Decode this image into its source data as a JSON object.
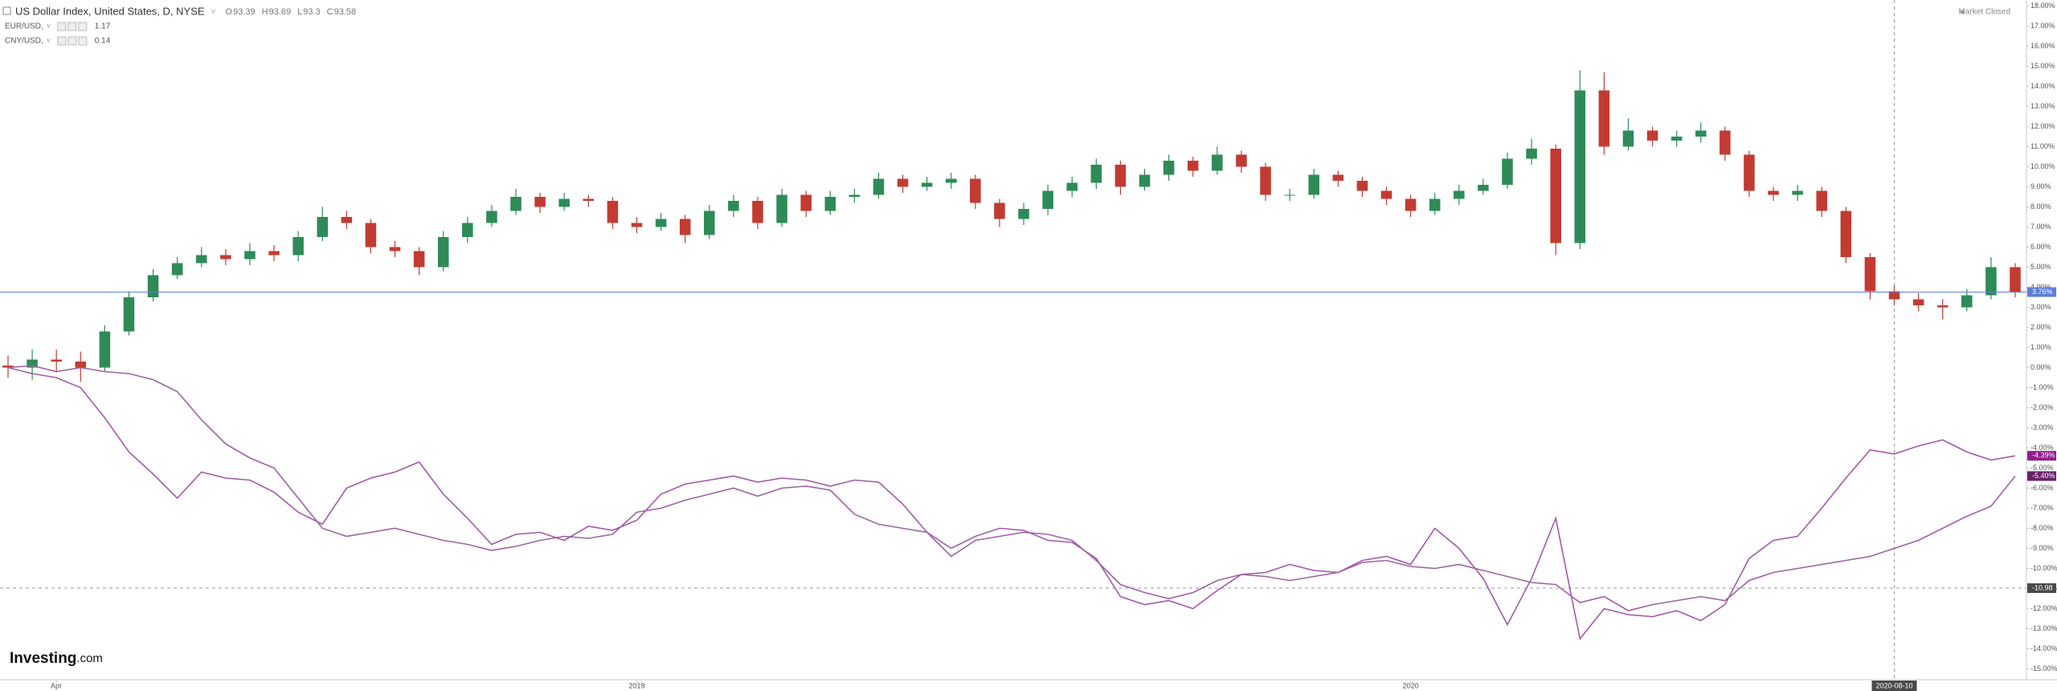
{
  "chart_data": {
    "type": "candlestick",
    "status": "Market Closed",
    "logo": {
      "brand": "Investing",
      "suffix": ".com"
    },
    "categories": [
      null,
      null,
      "Apr",
      null,
      null,
      null,
      null,
      null,
      null,
      null,
      null,
      null,
      null,
      null,
      null,
      null,
      null,
      null,
      null,
      null,
      null,
      null,
      null,
      null,
      null,
      null,
      "2019",
      null,
      null,
      null,
      null,
      null,
      null,
      null,
      null,
      null,
      null,
      null,
      null,
      null,
      null,
      null,
      null,
      null,
      null,
      null,
      null,
      null,
      null,
      null,
      null,
      null,
      null,
      null,
      null,
      null,
      null,
      null,
      "2020",
      null,
      null,
      null,
      null,
      null,
      null,
      null,
      null,
      null,
      null,
      null,
      null,
      null,
      null,
      null,
      null,
      null,
      null,
      null,
      "2020-08-10",
      null,
      null,
      null,
      null,
      null
    ],
    "candles": {
      "name": "US Dollar Index, United States, D, NYSE",
      "readout": [
        {
          "label": "O",
          "value": 93.39
        },
        {
          "label": "H",
          "value": 93.69
        },
        {
          "label": "L",
          "value": 93.3
        },
        {
          "label": "C",
          "value": 93.58
        }
      ],
      "up_color": "#2e8b57",
      "down_color": "#c23b32",
      "last_color": "#5b7fde",
      "open": [
        0.1,
        0,
        0.4,
        0.3,
        0,
        1.8,
        3.5,
        4.6,
        5.2,
        5.6,
        5.4,
        5.8,
        5.6,
        6.5,
        7.5,
        7.2,
        6.0,
        5.8,
        5.0,
        6.5,
        7.2,
        7.8,
        8.5,
        8.0,
        8.4,
        8.3,
        7.2,
        7.0,
        7.4,
        6.6,
        7.8,
        8.3,
        7.2,
        8.6,
        7.8,
        8.5,
        8.6,
        9.4,
        9.0,
        9.2,
        9.4,
        8.2,
        7.4,
        7.9,
        8.8,
        9.2,
        10.1,
        9.0,
        9.6,
        10.3,
        9.8,
        10.6,
        10.0,
        8.6,
        8.6,
        9.6,
        9.3,
        8.8,
        8.4,
        7.8,
        8.4,
        8.8,
        9.1,
        10.4,
        10.9,
        6.2,
        13.8,
        11.0,
        11.8,
        11.3,
        11.5,
        11.8,
        10.6,
        8.8,
        8.6,
        8.8,
        7.8,
        5.5,
        3.8,
        3.4,
        3.1,
        3.0,
        3.6,
        5.0
      ],
      "high": [
        0.6,
        0.9,
        0.9,
        0.8,
        2.1,
        3.8,
        4.9,
        5.5,
        6.0,
        5.9,
        6.2,
        6.1,
        6.8,
        8.0,
        7.8,
        7.4,
        6.3,
        6.0,
        6.8,
        7.5,
        8.1,
        8.9,
        8.7,
        8.7,
        8.6,
        8.5,
        7.5,
        7.7,
        7.6,
        8.1,
        8.6,
        8.5,
        8.9,
        8.8,
        8.8,
        8.9,
        9.7,
        9.6,
        9.5,
        9.7,
        9.6,
        8.4,
        8.2,
        9.1,
        9.5,
        10.4,
        10.3,
        9.9,
        10.6,
        10.5,
        11.0,
        10.8,
        10.2,
        8.9,
        9.9,
        9.8,
        9.5,
        9.0,
        8.6,
        8.7,
        9.1,
        9.4,
        10.7,
        11.4,
        11.1,
        14.8,
        14.7,
        12.4,
        12.0,
        11.8,
        12.2,
        12.0,
        10.8,
        9.0,
        9.1,
        9.0,
        8.0,
        5.7,
        4.1,
        3.7,
        3.4,
        3.9,
        5.5,
        5.2
      ],
      "low": [
        -0.5,
        -0.6,
        -0.2,
        -0.7,
        -0.2,
        1.6,
        3.3,
        4.4,
        5.0,
        5.1,
        5.1,
        5.3,
        5.3,
        6.3,
        6.9,
        5.7,
        5.5,
        4.6,
        4.8,
        6.2,
        7.0,
        7.6,
        7.7,
        7.8,
        8.0,
        6.9,
        6.7,
        6.8,
        6.2,
        6.4,
        7.5,
        6.9,
        7.0,
        7.5,
        7.6,
        8.2,
        8.4,
        8.7,
        8.8,
        8.9,
        7.9,
        7.0,
        7.1,
        7.6,
        8.5,
        8.9,
        8.6,
        8.8,
        9.3,
        9.5,
        9.6,
        9.7,
        8.3,
        8.3,
        8.4,
        9.0,
        8.5,
        8.1,
        7.5,
        7.6,
        8.1,
        8.6,
        8.9,
        10.1,
        5.6,
        5.9,
        10.6,
        10.8,
        11.0,
        11.0,
        11.2,
        10.3,
        8.5,
        8.3,
        8.3,
        7.5,
        5.2,
        3.4,
        3.1,
        2.8,
        2.4,
        2.8,
        3.4,
        3.5
      ],
      "close": [
        0,
        0.4,
        0.3,
        0,
        1.8,
        3.5,
        4.6,
        5.2,
        5.6,
        5.4,
        5.8,
        5.6,
        6.5,
        7.5,
        7.2,
        6.0,
        5.8,
        5.0,
        6.5,
        7.2,
        7.8,
        8.5,
        8.0,
        8.4,
        8.3,
        7.2,
        7.0,
        7.4,
        6.6,
        7.8,
        8.3,
        7.2,
        8.6,
        7.8,
        8.5,
        8.6,
        9.4,
        9.0,
        9.2,
        9.4,
        8.2,
        7.4,
        7.9,
        8.8,
        9.2,
        10.1,
        9.0,
        9.6,
        10.3,
        9.8,
        10.6,
        10.0,
        8.6,
        8.6,
        9.6,
        9.3,
        8.8,
        8.4,
        7.8,
        8.4,
        8.8,
        9.1,
        10.4,
        10.9,
        6.2,
        13.8,
        11.0,
        11.8,
        11.3,
        11.5,
        11.8,
        10.6,
        8.8,
        8.6,
        8.8,
        7.8,
        5.5,
        3.8,
        3.4,
        3.1,
        3.0,
        3.6,
        5.0,
        3.76
      ],
      "last_label": "3.76%"
    },
    "series": [
      {
        "name": "EUR/USD,",
        "readout": 1.17,
        "color": "#a25aa8",
        "label_color": "#8e1c8c",
        "last_label": "-4.39%",
        "values": [
          0,
          -0.3,
          -0.5,
          -1,
          -2.5,
          -4.2,
          -5.3,
          -6.5,
          -5.2,
          -5.5,
          -5.6,
          -6.2,
          -7.2,
          -7.8,
          -6.0,
          -5.5,
          -5.2,
          -4.7,
          -6.3,
          -7.5,
          -8.8,
          -8.3,
          -8.2,
          -8.6,
          -7.9,
          -8.1,
          -7.6,
          -6.3,
          -5.8,
          -5.6,
          -5.4,
          -5.7,
          -5.5,
          -5.6,
          -5.9,
          -5.6,
          -5.7,
          -6.8,
          -8.2,
          -9.0,
          -8.4,
          -8.0,
          -8.1,
          -8.6,
          -8.7,
          -9.5,
          -11.4,
          -11.8,
          -11.6,
          -12.0,
          -11.1,
          -10.3,
          -10.2,
          -9.8,
          -10.1,
          -10.2,
          -9.6,
          -9.4,
          -9.8,
          -8.0,
          -9.0,
          -10.5,
          -12.8,
          -10.5,
          -7.5,
          -13.5,
          -12.0,
          -12.3,
          -12.4,
          -12.1,
          -12.6,
          -11.8,
          -9.5,
          -8.6,
          -8.4,
          -7.0,
          -5.5,
          -4.1,
          -4.3,
          -3.9,
          -3.6,
          -4.2,
          -4.6,
          -4.39
        ]
      },
      {
        "name": "CNY/USD,",
        "readout": 0.14,
        "color": "#9d62a3",
        "label_color": "#6a1f6a",
        "last_label": "-5.40%",
        "values": [
          0,
          0.1,
          -0.2,
          0,
          -0.2,
          -0.3,
          -0.6,
          -1.2,
          -2.6,
          -3.8,
          -4.5,
          -5.0,
          -6.5,
          -8.0,
          -8.4,
          -8.2,
          -8.0,
          -8.3,
          -8.6,
          -8.8,
          -9.1,
          -8.9,
          -8.6,
          -8.4,
          -8.5,
          -8.3,
          -7.2,
          -7.0,
          -6.6,
          -6.3,
          -6.0,
          -6.4,
          -6.0,
          -5.9,
          -6.1,
          -7.3,
          -7.8,
          -8.0,
          -8.2,
          -9.4,
          -8.6,
          -8.4,
          -8.2,
          -8.3,
          -8.6,
          -9.6,
          -10.8,
          -11.2,
          -11.5,
          -11.2,
          -10.6,
          -10.3,
          -10.4,
          -10.6,
          -10.4,
          -10.2,
          -9.7,
          -9.6,
          -9.9,
          -10.0,
          -9.8,
          -10.1,
          -10.4,
          -10.7,
          -10.8,
          -11.7,
          -11.4,
          -12.1,
          -11.8,
          -11.6,
          -11.4,
          -11.6,
          -10.6,
          -10.2,
          -10.0,
          -9.8,
          -9.6,
          -9.4,
          -9.0,
          -8.6,
          -8.0,
          -7.4,
          -6.9,
          -5.4
        ]
      }
    ],
    "crosshair": {
      "x_index": 78,
      "y": -10.98
    },
    "ylim": [
      -15.5,
      18.3
    ],
    "yticks": [
      {
        "value": 18,
        "label": "18.00%"
      },
      {
        "value": 17,
        "label": "17.00%"
      },
      {
        "value": 16,
        "label": "16.00%"
      },
      {
        "value": 15,
        "label": "15.00%"
      },
      {
        "value": 14,
        "label": "14.00%"
      },
      {
        "value": 13,
        "label": "13.00%"
      },
      {
        "value": 12,
        "label": "12.00%"
      },
      {
        "value": 11,
        "label": "11.00%"
      },
      {
        "value": 10,
        "label": "10.00%"
      },
      {
        "value": 9,
        "label": "9.00%"
      },
      {
        "value": 8,
        "label": "8.00%"
      },
      {
        "value": 7,
        "label": "7.00%"
      },
      {
        "value": 6,
        "label": "6.00%"
      },
      {
        "value": 5,
        "label": "5.00%"
      },
      {
        "value": 4,
        "label": "4.00%"
      },
      {
        "value": 3,
        "label": "3.00%"
      },
      {
        "value": 2,
        "label": "2.00%"
      },
      {
        "value": 1,
        "label": "1.00%"
      },
      {
        "value": 0,
        "label": "0.00%"
      },
      {
        "value": -1,
        "label": "-1.00%"
      },
      {
        "value": -2,
        "label": "-2.00%"
      },
      {
        "value": -3,
        "label": "-3.00%"
      },
      {
        "value": -4,
        "label": "-4.00%"
      },
      {
        "value": -5,
        "label": "-5.00%"
      },
      {
        "value": -6,
        "label": "-6.00%"
      },
      {
        "value": -7,
        "label": "-7.00%"
      },
      {
        "value": -8,
        "label": "-8.00%"
      },
      {
        "value": -9,
        "label": "-9.00%"
      },
      {
        "value": -10,
        "label": "-10.00%"
      },
      {
        "value": -11,
        "label": "-11.00%"
      },
      {
        "value": -12,
        "label": "-12.00%"
      },
      {
        "value": -13,
        "label": "-13.00%"
      },
      {
        "value": -14,
        "label": "-14.00%"
      },
      {
        "value": -15,
        "label": "-15.00%"
      }
    ]
  }
}
